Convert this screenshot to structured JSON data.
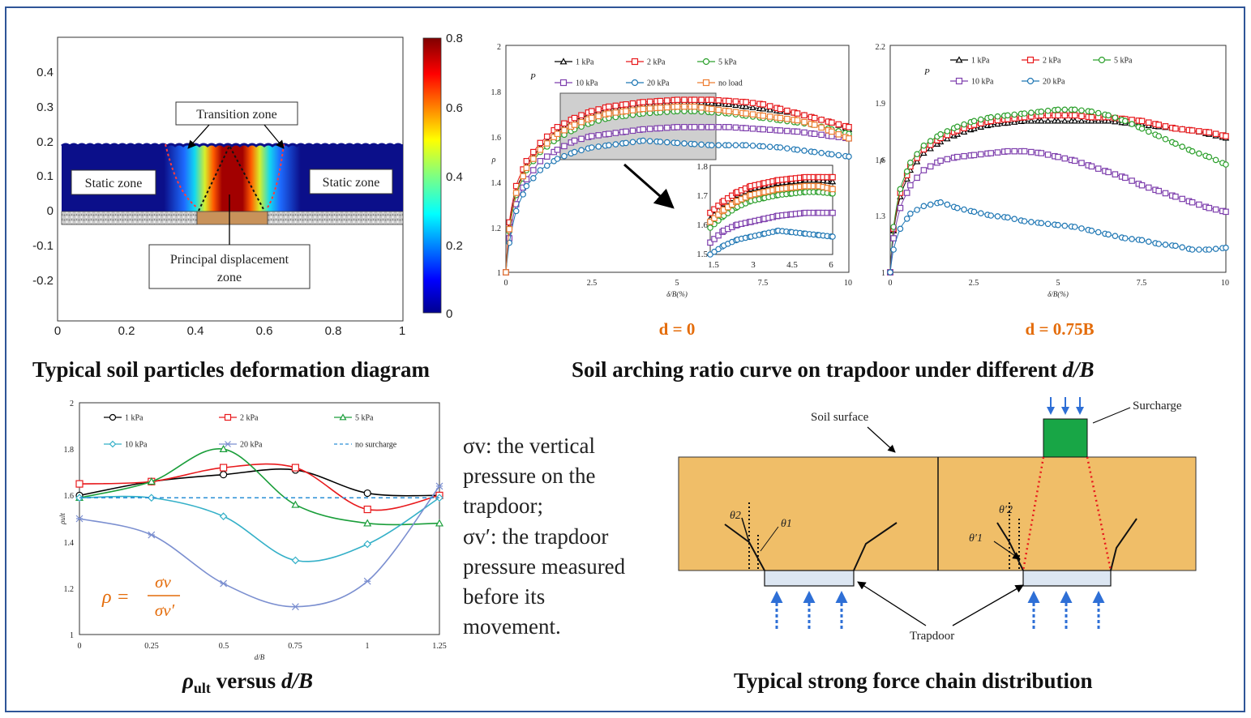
{
  "panels": {
    "deformation": {
      "caption": "Typical soil particles deformation diagram",
      "labels": {
        "transition": "Transition zone",
        "static_left": "Static zone",
        "static_right": "Static zone",
        "principal_1": "Principal displacement",
        "principal_2": "zone"
      },
      "x_ticks": [
        "0",
        "0.2",
        "0.4",
        "0.6",
        "0.8",
        "1"
      ],
      "y_ticks": [
        "0.4",
        "0.3",
        "0.2",
        "0.1",
        "0",
        "-0.1",
        "-0.2"
      ],
      "colorbar_ticks": [
        "0.8",
        "0.6",
        "0.4",
        "0.2",
        "0"
      ]
    },
    "arching": {
      "caption_main": "Soil arching ratio curve on trapdoor under different ",
      "caption_italic": "d/B",
      "left_sub": "d = 0",
      "right_sub": "d = 0.75B",
      "x_ticks": [
        "0",
        "2.5",
        "5",
        "7.5",
        "10"
      ],
      "left_y_ticks": [
        "2",
        "1.8",
        "1.6",
        "1.4",
        "1.2",
        "1"
      ],
      "right_y_ticks": [
        "2.2",
        "1.9",
        "1.6",
        "1.3",
        "1"
      ],
      "inset_x_ticks": [
        "1.5",
        "3",
        "4.5",
        "6"
      ],
      "inset_y_ticks": [
        "1.8",
        "1.7",
        "1.6",
        "1.5"
      ],
      "xlabel": "δ/B(%)",
      "ylabel": "ρ",
      "p_label": "P",
      "legend_left": [
        "1 kPa",
        "2 kPa",
        "5 kPa",
        "10 kPa",
        "20 kPa",
        "no load"
      ],
      "legend_right": [
        "1 kPa",
        "2 kPa",
        "5 kPa",
        "10 kPa",
        "20 kPa"
      ]
    },
    "rho_ult": {
      "caption_rho": "ρ",
      "caption_sub": "ult",
      "caption_mid": " versus ",
      "caption_italic": "d/B",
      "x_ticks": [
        "0",
        "0.25",
        "0.5",
        "0.75",
        "1",
        "1.25"
      ],
      "y_ticks": [
        "2",
        "1.8",
        "1.6",
        "1.4",
        "1.2",
        "1"
      ],
      "xlabel": "d/B",
      "ylabel": "ρult",
      "legend": [
        "1 kPa",
        "2 kPa",
        "5 kPa",
        "10 kPa",
        "20 kPa",
        "no surcharge"
      ],
      "formula_lhs": "ρ =",
      "formula_num": "σv",
      "formula_den": "σv′"
    },
    "definitions": {
      "line1": "σv:  the vertical",
      "line2": "pressure on the",
      "line3": "trapdoor;",
      "line4": "σv′: the trapdoor",
      "line5": "pressure measured",
      "line6": "before its",
      "line7": "movement."
    },
    "force_chain": {
      "caption": "Typical strong force chain distribution",
      "soil_surface": "Soil surface",
      "surcharge": "Surcharge",
      "trapdoor": "Trapdoor",
      "theta2": "θ2",
      "theta1": "θ1",
      "theta2p": "θ′2",
      "theta1p": "θ′1"
    }
  },
  "chart_data": [
    {
      "type": "line",
      "title": "d = 0",
      "xlabel": "δ/B(%)",
      "ylabel": "ρ",
      "xlim": [
        0,
        10
      ],
      "ylim": [
        1,
        2
      ],
      "series": [
        {
          "name": "1 kPa",
          "color": "#000000",
          "marker": "triangle",
          "x": [
            0,
            0.1,
            0.3,
            0.6,
            1,
            1.5,
            2,
            2.5,
            3,
            3.5,
            4,
            4.5,
            5,
            5.5,
            6,
            6.5,
            7,
            7.5,
            8,
            8.5,
            9,
            9.5,
            10
          ],
          "y": [
            1,
            1.2,
            1.36,
            1.47,
            1.55,
            1.62,
            1.67,
            1.7,
            1.72,
            1.73,
            1.74,
            1.745,
            1.75,
            1.75,
            1.745,
            1.74,
            1.73,
            1.72,
            1.71,
            1.7,
            1.68,
            1.66,
            1.63
          ]
        },
        {
          "name": "2 kPa",
          "color": "#e8191c",
          "marker": "square",
          "x": [
            0,
            0.1,
            0.3,
            0.6,
            1,
            1.5,
            2,
            2.5,
            3,
            3.5,
            4,
            4.5,
            5,
            5.5,
            6,
            6.5,
            7,
            7.5,
            8,
            8.5,
            9,
            9.5,
            10
          ],
          "y": [
            1,
            1.22,
            1.38,
            1.49,
            1.57,
            1.64,
            1.68,
            1.71,
            1.73,
            1.74,
            1.75,
            1.755,
            1.76,
            1.76,
            1.76,
            1.755,
            1.75,
            1.74,
            1.72,
            1.7,
            1.68,
            1.66,
            1.64
          ]
        },
        {
          "name": "5 kPa",
          "color": "#2ca02c",
          "marker": "circle",
          "x": [
            0,
            0.1,
            0.3,
            0.6,
            1,
            1.5,
            2,
            2.5,
            3,
            3.5,
            4,
            4.5,
            5,
            5.5,
            6,
            6.5,
            7,
            7.5,
            8,
            8.5,
            9,
            9.5,
            10
          ],
          "y": [
            1,
            1.18,
            1.34,
            1.45,
            1.53,
            1.59,
            1.63,
            1.66,
            1.68,
            1.69,
            1.7,
            1.705,
            1.71,
            1.71,
            1.705,
            1.7,
            1.69,
            1.68,
            1.67,
            1.66,
            1.65,
            1.63,
            1.61
          ]
        },
        {
          "name": "10 kPa",
          "color": "#7e3fad",
          "marker": "square",
          "x": [
            0,
            0.1,
            0.3,
            0.6,
            1,
            1.5,
            2,
            2.5,
            3,
            3.5,
            4,
            4.5,
            5,
            5.5,
            6,
            6.5,
            7,
            7.5,
            8,
            8.5,
            9,
            9.5,
            10
          ],
          "y": [
            1,
            1.15,
            1.3,
            1.41,
            1.49,
            1.54,
            1.58,
            1.6,
            1.61,
            1.62,
            1.63,
            1.635,
            1.64,
            1.64,
            1.64,
            1.64,
            1.635,
            1.63,
            1.625,
            1.62,
            1.61,
            1.6,
            1.59
          ]
        },
        {
          "name": "20 kPa",
          "color": "#1f77b4",
          "marker": "circle",
          "x": [
            0,
            0.1,
            0.3,
            0.6,
            1,
            1.5,
            2,
            2.5,
            3,
            3.5,
            4,
            4.5,
            5,
            5.5,
            6,
            6.5,
            7,
            7.5,
            8,
            8.5,
            9,
            9.5,
            10
          ],
          "y": [
            1,
            1.13,
            1.27,
            1.38,
            1.45,
            1.5,
            1.53,
            1.55,
            1.56,
            1.57,
            1.58,
            1.575,
            1.57,
            1.565,
            1.56,
            1.56,
            1.56,
            1.555,
            1.55,
            1.54,
            1.53,
            1.52,
            1.51
          ]
        },
        {
          "name": "no load",
          "color": "#ed7d31",
          "marker": "square",
          "x": [
            0,
            0.1,
            0.3,
            0.6,
            1,
            1.5,
            2,
            2.5,
            3,
            3.5,
            4,
            4.5,
            5,
            5.5,
            6,
            6.5,
            7,
            7.5,
            8,
            8.5,
            9,
            9.5,
            10
          ],
          "y": [
            1,
            1.19,
            1.35,
            1.46,
            1.54,
            1.61,
            1.65,
            1.68,
            1.7,
            1.71,
            1.72,
            1.725,
            1.73,
            1.73,
            1.72,
            1.71,
            1.7,
            1.69,
            1.68,
            1.67,
            1.65,
            1.62,
            1.59
          ]
        }
      ]
    },
    {
      "type": "line",
      "title": "d = 0.75B",
      "xlabel": "δ/B(%)",
      "ylabel": "ρ",
      "xlim": [
        0,
        10
      ],
      "ylim": [
        1,
        2.2
      ],
      "series": [
        {
          "name": "1 kPa",
          "color": "#000000",
          "marker": "triangle",
          "x": [
            0,
            0.1,
            0.3,
            0.6,
            1,
            1.5,
            2,
            2.5,
            3,
            3.5,
            4,
            4.5,
            5,
            5.5,
            6,
            6.5,
            7,
            7.5,
            8,
            8.5,
            9,
            9.5,
            10
          ],
          "y": [
            1,
            1.22,
            1.4,
            1.54,
            1.63,
            1.69,
            1.73,
            1.76,
            1.78,
            1.79,
            1.8,
            1.8,
            1.8,
            1.8,
            1.8,
            1.8,
            1.79,
            1.78,
            1.77,
            1.76,
            1.75,
            1.73,
            1.71
          ]
        },
        {
          "name": "2 kPa",
          "color": "#e8191c",
          "marker": "square",
          "x": [
            0,
            0.1,
            0.3,
            0.6,
            1,
            1.5,
            2,
            2.5,
            3,
            3.5,
            4,
            4.5,
            5,
            5.5,
            6,
            6.5,
            7,
            7.5,
            8,
            8.5,
            9,
            9.5,
            10
          ],
          "y": [
            1,
            1.23,
            1.42,
            1.56,
            1.65,
            1.71,
            1.75,
            1.78,
            1.8,
            1.81,
            1.82,
            1.83,
            1.83,
            1.83,
            1.82,
            1.82,
            1.81,
            1.8,
            1.78,
            1.76,
            1.75,
            1.74,
            1.72
          ]
        },
        {
          "name": "5 kPa",
          "color": "#2ca02c",
          "marker": "circle",
          "x": [
            0,
            0.1,
            0.3,
            0.6,
            1,
            1.5,
            2,
            2.5,
            3,
            3.5,
            4,
            4.5,
            5,
            5.5,
            6,
            6.5,
            7,
            7.5,
            8,
            8.5,
            9,
            9.5,
            10
          ],
          "y": [
            1,
            1.24,
            1.44,
            1.58,
            1.67,
            1.73,
            1.77,
            1.8,
            1.82,
            1.83,
            1.84,
            1.85,
            1.86,
            1.86,
            1.85,
            1.83,
            1.8,
            1.76,
            1.72,
            1.68,
            1.64,
            1.61,
            1.57
          ]
        },
        {
          "name": "10 kPa",
          "color": "#7e3fad",
          "marker": "square",
          "x": [
            0,
            0.1,
            0.3,
            0.6,
            1,
            1.5,
            2,
            2.5,
            3,
            3.5,
            4,
            4.5,
            5,
            5.5,
            6,
            6.5,
            7,
            7.5,
            8,
            8.5,
            9,
            9.5,
            10
          ],
          "y": [
            1,
            1.18,
            1.34,
            1.46,
            1.54,
            1.59,
            1.61,
            1.62,
            1.63,
            1.64,
            1.64,
            1.63,
            1.61,
            1.59,
            1.56,
            1.53,
            1.5,
            1.46,
            1.43,
            1.4,
            1.37,
            1.34,
            1.32
          ]
        },
        {
          "name": "20 kPa",
          "color": "#1f77b4",
          "marker": "circle",
          "x": [
            0,
            0.1,
            0.3,
            0.6,
            1,
            1.5,
            2,
            2.5,
            3,
            3.5,
            4,
            4.5,
            5,
            5.5,
            6,
            6.5,
            7,
            7.5,
            8,
            8.5,
            9,
            9.5,
            10
          ],
          "y": [
            1,
            1.12,
            1.23,
            1.31,
            1.35,
            1.37,
            1.34,
            1.32,
            1.3,
            1.29,
            1.27,
            1.26,
            1.25,
            1.24,
            1.22,
            1.2,
            1.18,
            1.17,
            1.15,
            1.14,
            1.12,
            1.12,
            1.13
          ]
        }
      ]
    },
    {
      "type": "line",
      "xlabel": "d/B",
      "ylabel": "ρult",
      "xlim": [
        0,
        1.25
      ],
      "ylim": [
        1,
        2
      ],
      "x": [
        0,
        0.25,
        0.5,
        0.75,
        1,
        1.25
      ],
      "series": [
        {
          "name": "1 kPa",
          "color": "#000000",
          "marker": "circle",
          "values": [
            1.6,
            1.66,
            1.69,
            1.71,
            1.61,
            1.6
          ]
        },
        {
          "name": "2 kPa",
          "color": "#e8191c",
          "marker": "square",
          "values": [
            1.65,
            1.66,
            1.72,
            1.72,
            1.54,
            1.6
          ]
        },
        {
          "name": "5 kPa",
          "color": "#1a9e3a",
          "marker": "triangle",
          "values": [
            1.59,
            1.66,
            1.8,
            1.56,
            1.48,
            1.48
          ]
        },
        {
          "name": "10 kPa",
          "color": "#34b0c8",
          "marker": "diamond",
          "values": [
            1.59,
            1.59,
            1.51,
            1.32,
            1.39,
            1.59
          ]
        },
        {
          "name": "20 kPa",
          "color": "#7b8fd0",
          "marker": "star",
          "values": [
            1.5,
            1.43,
            1.22,
            1.12,
            1.23,
            1.64
          ]
        },
        {
          "name": "no surcharge",
          "color": "#2a8fd6",
          "marker": "none",
          "dashed": true,
          "values": [
            1.59,
            1.59,
            1.59,
            1.59,
            1.59,
            1.59
          ]
        }
      ]
    }
  ]
}
